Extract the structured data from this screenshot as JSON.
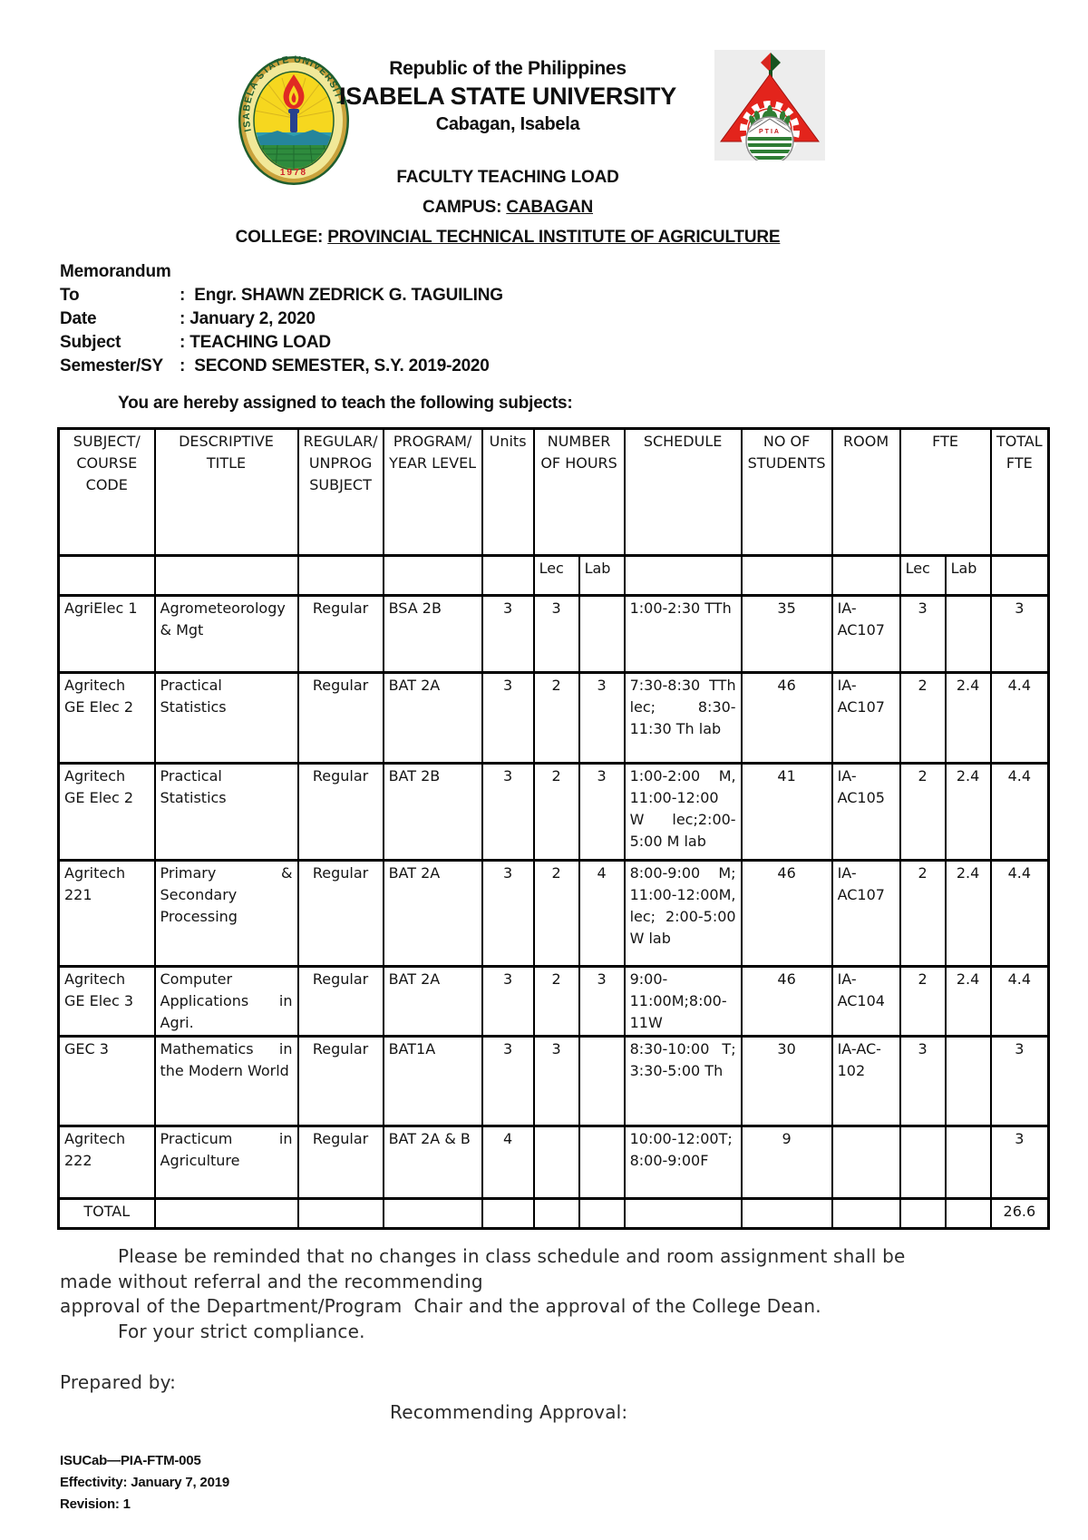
{
  "header": {
    "republic": "Republic of the Philippines",
    "university": "ISABELA STATE UNIVERSITY",
    "location": "Cabagan, Isabela",
    "doc_title": "FACULTY TEACHING LOAD",
    "campus_label": "CAMPUS: ",
    "campus_value": "CABAGAN",
    "college_label": "COLLEGE: ",
    "college_value": "PROVINCIAL TECHNICAL INSTITUTE OF AGRICULTURE"
  },
  "logos": {
    "left_seal_ring_text": "ISABELA STATE UNIVERSITY",
    "left_seal_year": "1978",
    "right_logo_text": "PTIA"
  },
  "memo": {
    "title": "Memorandum",
    "fields": [
      {
        "label": "To",
        "value": ":  Engr. SHAWN ZEDRICK G. TAGUILING"
      },
      {
        "label": "Date",
        "value": ": January 2, 2020"
      },
      {
        "label": "Subject",
        "value": ": TEACHING LOAD"
      },
      {
        "label": "Semester/SY",
        "value": ":  SECOND SEMESTER, S.Y. 2019-2020"
      }
    ],
    "intro": "You are hereby assigned to teach the following subjects:"
  },
  "table": {
    "header_row": [
      {
        "label": "SUBJECT/ COURSE CODE",
        "span": 1
      },
      {
        "label": "DESCRIPTIVE TITLE",
        "span": 1
      },
      {
        "label": "REGULAR/ UNPROG SUBJECT",
        "span": 1
      },
      {
        "label": "PROGRAM/ YEAR LEVEL",
        "span": 1
      },
      {
        "label": "Units",
        "span": 1
      },
      {
        "label": "NUMBER OF HOURS",
        "span": 2
      },
      {
        "label": "SCHEDULE",
        "span": 1
      },
      {
        "label": "NO OF STUDENTS",
        "span": 1
      },
      {
        "label": "ROOM",
        "span": 1
      },
      {
        "label": "FTE",
        "span": 2
      },
      {
        "label": "TOTAL FTE",
        "span": 1
      }
    ],
    "sub_header": [
      "",
      "",
      "",
      "",
      "",
      "Lec",
      "Lab",
      "",
      "",
      "",
      "Lec",
      "Lab",
      ""
    ],
    "rows": [
      [
        "AgriElec 1",
        "Agrometeorology & Mgt",
        "Regular",
        "BSA 2B",
        "3",
        "3",
        "",
        "1:00-2:30 TTh",
        "35",
        "IA-AC107",
        "3",
        "",
        "3"
      ],
      [
        "Agritech GE Elec 2",
        "Practical Statistics",
        "Regular",
        "BAT 2A",
        "3",
        "2",
        "3",
        "7:30-8:30 TTh lec; 8:30-11:30 Th lab",
        "46",
        "IA-AC107",
        "2",
        "2.4",
        "4.4"
      ],
      [
        "Agritech GE Elec 2",
        "Practical Statistics",
        "Regular",
        "BAT 2B",
        "3",
        "2",
        "3",
        "1:00-2:00 M, 11:00-12:00 W lec;2:00-5:00 M lab",
        "41",
        "IA-AC105",
        "2",
        "2.4",
        "4.4"
      ],
      [
        "Agritech 221",
        "Primary & Secondary Processing",
        "Regular",
        "BAT 2A",
        "3",
        "2",
        "4",
        "8:00-9:00 M; 11:00-12:00M, lec; 2:00-5:00 W lab",
        "46",
        "IA-AC107",
        "2",
        "2.4",
        "4.4"
      ],
      [
        "Agritech GE Elec 3",
        "Computer Applications in Agri.",
        "Regular",
        "BAT 2A",
        "3",
        "2",
        "3",
        "9:00-11:00M;8:00-11W",
        "46",
        "IA-AC104",
        "2",
        "2.4",
        "4.4"
      ],
      [
        "GEC 3",
        "Mathematics in the Modern World",
        "Regular",
        "BAT1A",
        "3",
        "3",
        "",
        "8:30-10:00 T; 3:30-5:00 Th",
        "30",
        "IA-AC-102",
        "3",
        "",
        "3"
      ],
      [
        "Agritech 222",
        "Practicum in Agriculture",
        "Regular",
        "BAT 2A & B",
        "4",
        "",
        "",
        "10:00-12:00T; 8:00-9:00F",
        "9",
        "",
        "",
        "",
        "3"
      ]
    ],
    "total_label": "TOTAL",
    "total_value": "26.6"
  },
  "footer": {
    "note_lines": [
      "Please be reminded that no changes in class schedule and room assignment shall be",
      "made without referral and the recommending",
      "approval of the Department/Program  Chair and the approval of the College Dean.",
      "For your strict compliance."
    ],
    "prepared_by": "Prepared by:",
    "recommending_approval": "Recommending Approval:",
    "doc_code": "ISUCab—PIA-FTM-005",
    "effectivity": "Effectivity: January 7, 2019",
    "revision": "Revision: 1"
  }
}
